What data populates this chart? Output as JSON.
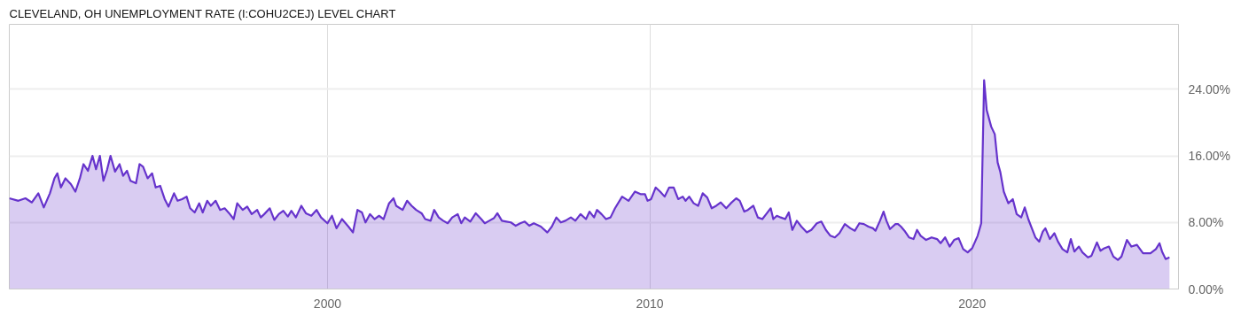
{
  "chart_data": {
    "type": "area",
    "title": "CLEVELAND, OH UNEMPLOYMENT RATE (I:COHU2CEJ) LEVEL CHART",
    "x": [
      1990.13,
      1990.41,
      1990.63,
      1990.83,
      1991.03,
      1991.2,
      1991.39,
      1991.53,
      1991.62,
      1991.73,
      1991.87,
      1992.04,
      1992.18,
      1992.32,
      1992.43,
      1992.57,
      1992.71,
      1992.82,
      1992.94,
      1993.05,
      1993.16,
      1993.27,
      1993.41,
      1993.55,
      1993.66,
      1993.78,
      1993.89,
      1994.06,
      1994.17,
      1994.28,
      1994.42,
      1994.56,
      1994.67,
      1994.81,
      1994.95,
      1995.07,
      1995.24,
      1995.35,
      1995.49,
      1995.63,
      1995.74,
      1995.88,
      1996.02,
      1996.13,
      1996.27,
      1996.38,
      1996.53,
      1996.67,
      1996.81,
      1996.95,
      1997.09,
      1997.2,
      1997.37,
      1997.51,
      1997.65,
      1997.82,
      1997.93,
      1998.04,
      1998.21,
      1998.35,
      1998.49,
      1998.63,
      1998.77,
      1998.88,
      1999.02,
      1999.19,
      1999.33,
      1999.5,
      1999.66,
      1999.8,
      2000.0,
      2000.14,
      2000.28,
      2000.45,
      2000.65,
      2000.79,
      2000.93,
      2001.07,
      2001.18,
      2001.32,
      2001.46,
      2001.6,
      2001.74,
      2001.91,
      2002.05,
      2002.13,
      2002.33,
      2002.47,
      2002.61,
      2002.75,
      2002.92,
      2003.03,
      2003.2,
      2003.31,
      2003.45,
      2003.59,
      2003.73,
      2003.87,
      2004.04,
      2004.15,
      2004.26,
      2004.43,
      2004.6,
      2004.77,
      2004.88,
      2005.02,
      2005.16,
      2005.27,
      2005.41,
      2005.55,
      2005.69,
      2005.84,
      2005.98,
      2006.12,
      2006.26,
      2006.4,
      2006.62,
      2006.82,
      2006.96,
      2007.1,
      2007.24,
      2007.38,
      2007.55,
      2007.69,
      2007.85,
      2008.02,
      2008.13,
      2008.27,
      2008.36,
      2008.5,
      2008.64,
      2008.78,
      2008.92,
      2009.14,
      2009.34,
      2009.54,
      2009.71,
      2009.85,
      2009.93,
      2010.04,
      2010.18,
      2010.32,
      2010.46,
      2010.6,
      2010.74,
      2010.88,
      2011.02,
      2011.11,
      2011.22,
      2011.36,
      2011.5,
      2011.64,
      2011.78,
      2011.92,
      2012.06,
      2012.2,
      2012.37,
      2012.51,
      2012.68,
      2012.79,
      2012.93,
      2013.04,
      2013.21,
      2013.35,
      2013.49,
      2013.61,
      2013.75,
      2013.83,
      2013.94,
      2014.06,
      2014.2,
      2014.31,
      2014.42,
      2014.56,
      2014.7,
      2014.87,
      2015.01,
      2015.18,
      2015.32,
      2015.46,
      2015.6,
      2015.74,
      2015.88,
      2016.05,
      2016.22,
      2016.36,
      2016.5,
      2016.64,
      2016.78,
      2016.92,
      2017.0,
      2017.14,
      2017.25,
      2017.34,
      2017.45,
      2017.62,
      2017.7,
      2017.79,
      2017.9,
      2018.04,
      2018.18,
      2018.29,
      2018.4,
      2018.57,
      2018.74,
      2018.91,
      2019.02,
      2019.16,
      2019.3,
      2019.44,
      2019.58,
      2019.72,
      2019.86,
      2020.0,
      2020.17,
      2020.28,
      2020.37,
      2020.45,
      2020.59,
      2020.7,
      2020.79,
      2020.87,
      2020.98,
      2021.12,
      2021.26,
      2021.38,
      2021.52,
      2021.63,
      2021.74,
      2021.85,
      2021.96,
      2022.08,
      2022.19,
      2022.27,
      2022.41,
      2022.55,
      2022.66,
      2022.8,
      2022.95,
      2023.06,
      2023.17,
      2023.31,
      2023.42,
      2023.59,
      2023.7,
      2023.87,
      2023.98,
      2024.1,
      2024.24,
      2024.38,
      2024.52,
      2024.63,
      2024.8,
      2024.94,
      2025.11,
      2025.3,
      2025.53,
      2025.7,
      2025.81,
      2025.89,
      2026.0,
      2026.12
    ],
    "series": [
      {
        "color": "#6633cc",
        "values": [
          10.9,
          10.6,
          10.9,
          10.4,
          11.5,
          9.8,
          11.5,
          13.3,
          13.9,
          12.2,
          13.3,
          12.6,
          11.7,
          13.3,
          15.0,
          14.2,
          16.0,
          14.4,
          16.0,
          13.0,
          14.3,
          16.0,
          14.1,
          15.0,
          13.6,
          14.2,
          13.0,
          12.7,
          15.0,
          14.7,
          13.3,
          13.9,
          12.2,
          12.4,
          10.8,
          9.9,
          11.5,
          10.6,
          10.8,
          11.1,
          9.7,
          9.2,
          10.3,
          9.2,
          10.6,
          10.0,
          10.6,
          9.5,
          9.7,
          9.1,
          8.4,
          10.3,
          9.5,
          9.9,
          9.0,
          9.5,
          8.6,
          9.0,
          9.7,
          8.3,
          9.0,
          9.4,
          8.7,
          9.4,
          8.6,
          10.0,
          9.1,
          8.8,
          9.5,
          8.6,
          7.9,
          8.8,
          7.3,
          8.4,
          7.5,
          6.8,
          9.5,
          9.2,
          8.0,
          9.0,
          8.4,
          8.8,
          8.4,
          10.3,
          10.9,
          10.0,
          9.5,
          10.6,
          10.0,
          9.5,
          9.1,
          8.4,
          8.2,
          9.5,
          8.6,
          8.2,
          7.9,
          8.6,
          9.0,
          7.9,
          8.6,
          8.1,
          9.1,
          8.4,
          7.9,
          8.2,
          8.5,
          9.1,
          8.2,
          8.1,
          8.0,
          7.6,
          7.9,
          8.1,
          7.6,
          7.9,
          7.5,
          6.8,
          7.5,
          8.6,
          8.0,
          8.2,
          8.6,
          8.2,
          9.0,
          8.4,
          9.3,
          8.6,
          9.5,
          9.0,
          8.4,
          8.6,
          9.7,
          11.1,
          10.6,
          11.7,
          11.4,
          11.4,
          10.6,
          10.8,
          12.2,
          11.7,
          11.1,
          12.2,
          12.2,
          10.8,
          11.1,
          10.6,
          11.1,
          10.3,
          10.0,
          11.5,
          11.0,
          9.7,
          10.0,
          10.4,
          9.7,
          10.3,
          10.9,
          10.6,
          9.3,
          9.5,
          10.0,
          8.6,
          8.4,
          9.0,
          9.7,
          8.4,
          8.8,
          8.6,
          8.4,
          9.2,
          7.1,
          8.2,
          7.5,
          6.8,
          7.1,
          7.9,
          8.1,
          7.1,
          6.4,
          6.2,
          6.7,
          7.8,
          7.3,
          7.0,
          7.9,
          7.8,
          7.5,
          7.3,
          7.0,
          8.2,
          9.3,
          8.2,
          7.2,
          7.8,
          7.8,
          7.5,
          7.0,
          6.2,
          6.0,
          7.1,
          6.4,
          5.9,
          6.2,
          6.0,
          5.5,
          6.2,
          5.1,
          5.9,
          6.1,
          4.8,
          4.4,
          4.9,
          6.4,
          7.9,
          25.1,
          21.5,
          19.5,
          18.6,
          15.2,
          14.1,
          11.7,
          10.3,
          10.8,
          9.0,
          8.6,
          9.8,
          8.4,
          7.3,
          6.2,
          5.7,
          6.9,
          7.3,
          6.0,
          6.7,
          5.7,
          4.8,
          4.4,
          6.0,
          4.5,
          5.1,
          4.4,
          3.8,
          4.0,
          5.6,
          4.6,
          4.9,
          5.1,
          3.9,
          3.5,
          3.9,
          5.9,
          5.1,
          5.3,
          4.3,
          4.3,
          4.8,
          5.5,
          4.5,
          3.6,
          3.8
        ]
      }
    ],
    "xlim": [
      1990.13,
      2026.4
    ],
    "xticks": [
      2000,
      2010,
      2020
    ],
    "ylim": [
      0,
      31.8
    ],
    "yticks": [
      {
        "value": 0,
        "label": "0.00%"
      },
      {
        "value": 8,
        "label": "8.00%"
      },
      {
        "value": 16,
        "label": "16.00%"
      },
      {
        "value": 24,
        "label": "24.00%"
      }
    ],
    "grid": true
  }
}
